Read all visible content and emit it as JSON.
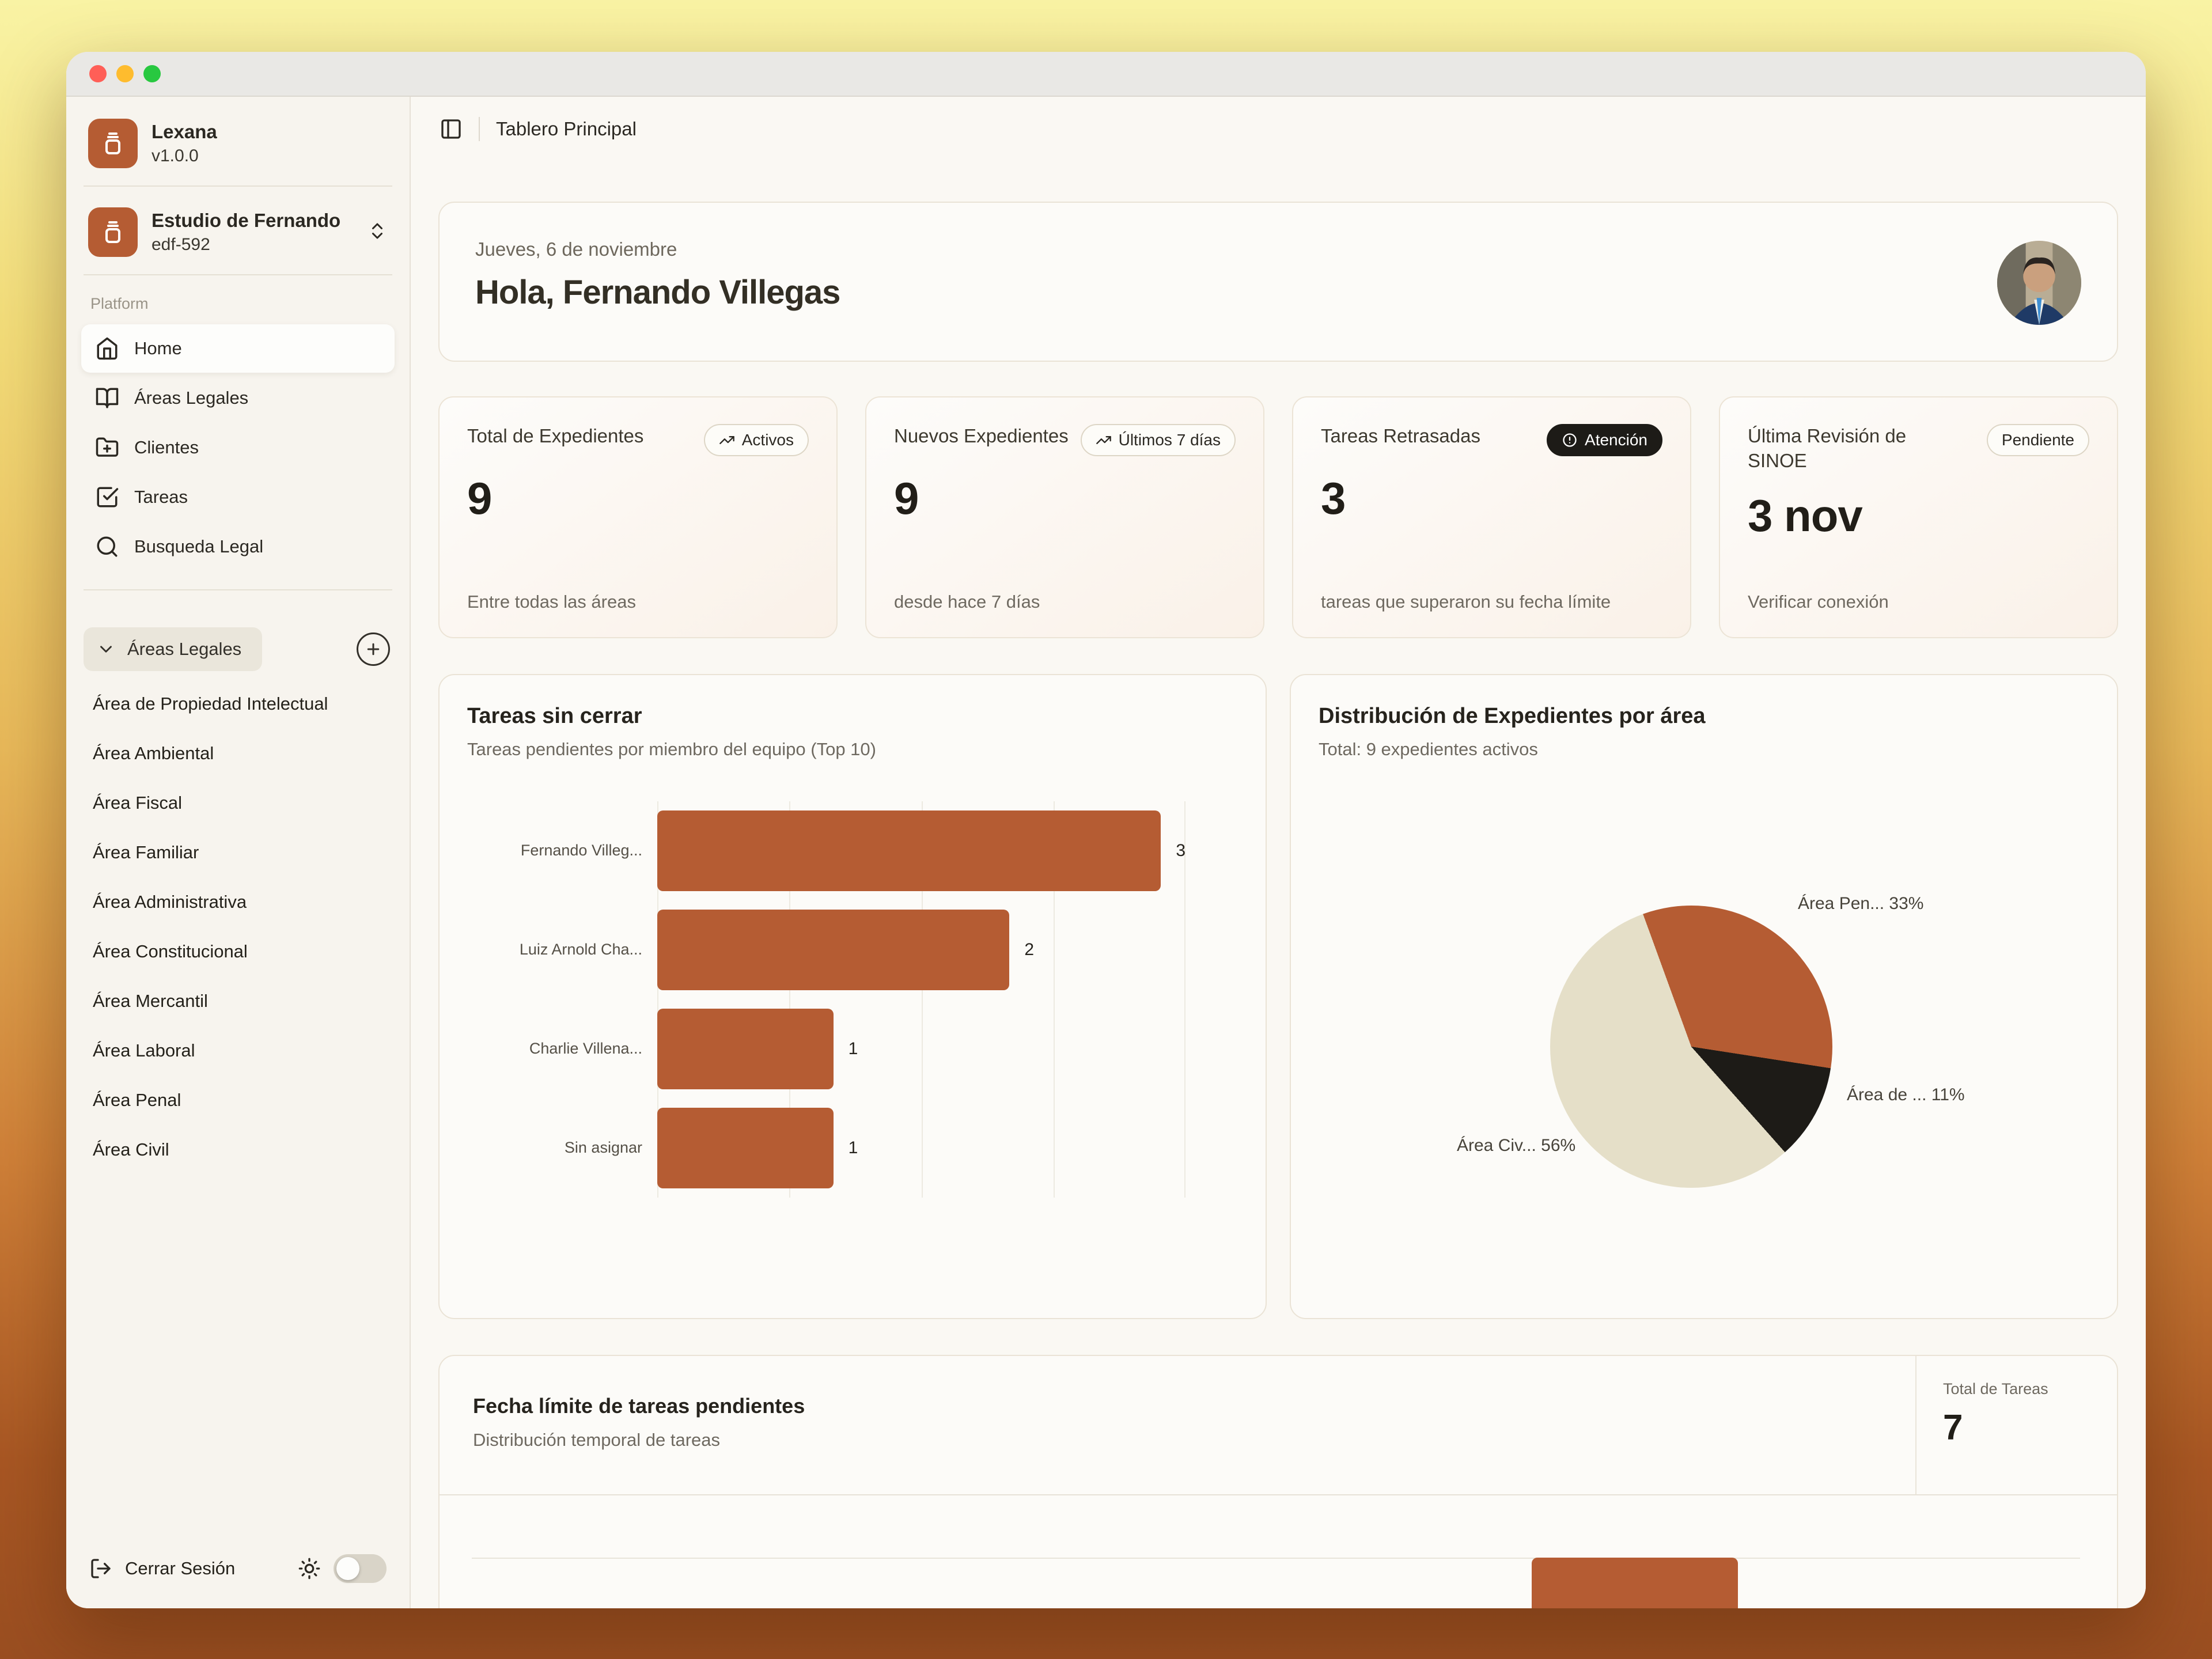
{
  "sidebar": {
    "brand": {
      "name": "Lexana",
      "version": "v1.0.0"
    },
    "workspace": {
      "name": "Estudio de Fernando",
      "id": "edf-592"
    },
    "platform_label": "Platform",
    "nav": [
      {
        "label": "Home",
        "icon": "home-icon",
        "active": true
      },
      {
        "label": "Áreas Legales",
        "icon": "book-open-icon",
        "active": false
      },
      {
        "label": "Clientes",
        "icon": "folder-plus-icon",
        "active": false
      },
      {
        "label": "Tareas",
        "icon": "check-square-icon",
        "active": false
      },
      {
        "label": "Busqueda Legal",
        "icon": "search-icon",
        "active": false
      }
    ],
    "areas_header": {
      "label": "Áreas Legales"
    },
    "areas": [
      "Área de Propiedad Intelectual",
      "Área Ambiental",
      "Área Fiscal",
      "Área Familiar",
      "Área Administrativa",
      "Área Constitucional",
      "Área Mercantil",
      "Área Laboral",
      "Área Penal",
      "Área Civil"
    ],
    "footer": {
      "logout_label": "Cerrar Sesión"
    }
  },
  "header": {
    "breadcrumb": "Tablero Principal"
  },
  "greeting": {
    "date": "Jueves, 6 de noviembre",
    "title": "Hola, Fernando Villegas"
  },
  "stats": [
    {
      "title": "Total de Expedientes",
      "badge": "Activos",
      "badge_icon": "trending-up-icon",
      "badge_style": "outline",
      "value": "9",
      "subtitle": "Entre todas las áreas"
    },
    {
      "title": "Nuevos Expedientes",
      "badge": "Últimos 7 días",
      "badge_icon": "trending-up-icon",
      "badge_style": "outline",
      "value": "9",
      "subtitle": "desde hace 7 días"
    },
    {
      "title": "Tareas Retrasadas",
      "badge": "Atención",
      "badge_icon": "alert-circle-icon",
      "badge_style": "dark",
      "value": "3",
      "subtitle": "tareas que superaron su fecha límite"
    },
    {
      "title": "Última Revisión de SINOE",
      "badge": "Pendiente",
      "badge_icon": "none",
      "badge_style": "outline",
      "value": "3 nov",
      "subtitle": "Verificar conexión"
    }
  ],
  "chart_data": [
    {
      "type": "bar",
      "orientation": "horizontal",
      "title": "Tareas sin cerrar",
      "subtitle": "Tareas pendientes por miembro del equipo (Top 10)",
      "categories": [
        "Fernando Villeg...",
        "Luiz Arnold Cha...",
        "Charlie Villena...",
        "Sin asignar"
      ],
      "values": [
        3,
        2,
        1,
        1
      ],
      "xlim": [
        0,
        3
      ],
      "grid": true,
      "bar_color": "#b55c33"
    },
    {
      "type": "pie",
      "title": "Distribución de Expedientes por área",
      "subtitle": "Total: 9 expedientes activos",
      "start_angle_deg": -20,
      "slices": [
        {
          "label": "Área Pen... 33%",
          "value": 33,
          "color": "#b55c33"
        },
        {
          "label": "Área de ... 11%",
          "value": 11,
          "color": "#1d1b17"
        },
        {
          "label": "Área Civ... 56%",
          "value": 56,
          "color": "#e5dfc8"
        }
      ]
    },
    {
      "type": "bar",
      "title": "Fecha límite de tareas pendientes",
      "subtitle": "Distribución temporal de tareas",
      "total_label": "Total de Tareas",
      "total_value": "7",
      "note": "chart partially visible; one orange bar shown",
      "bar_color": "#b55c33"
    }
  ],
  "colors": {
    "accent": "#b55c33",
    "pie_dark": "#1d1b17",
    "pie_cream": "#e5dfc8",
    "badge_dark_bg": "#1d1b17"
  }
}
